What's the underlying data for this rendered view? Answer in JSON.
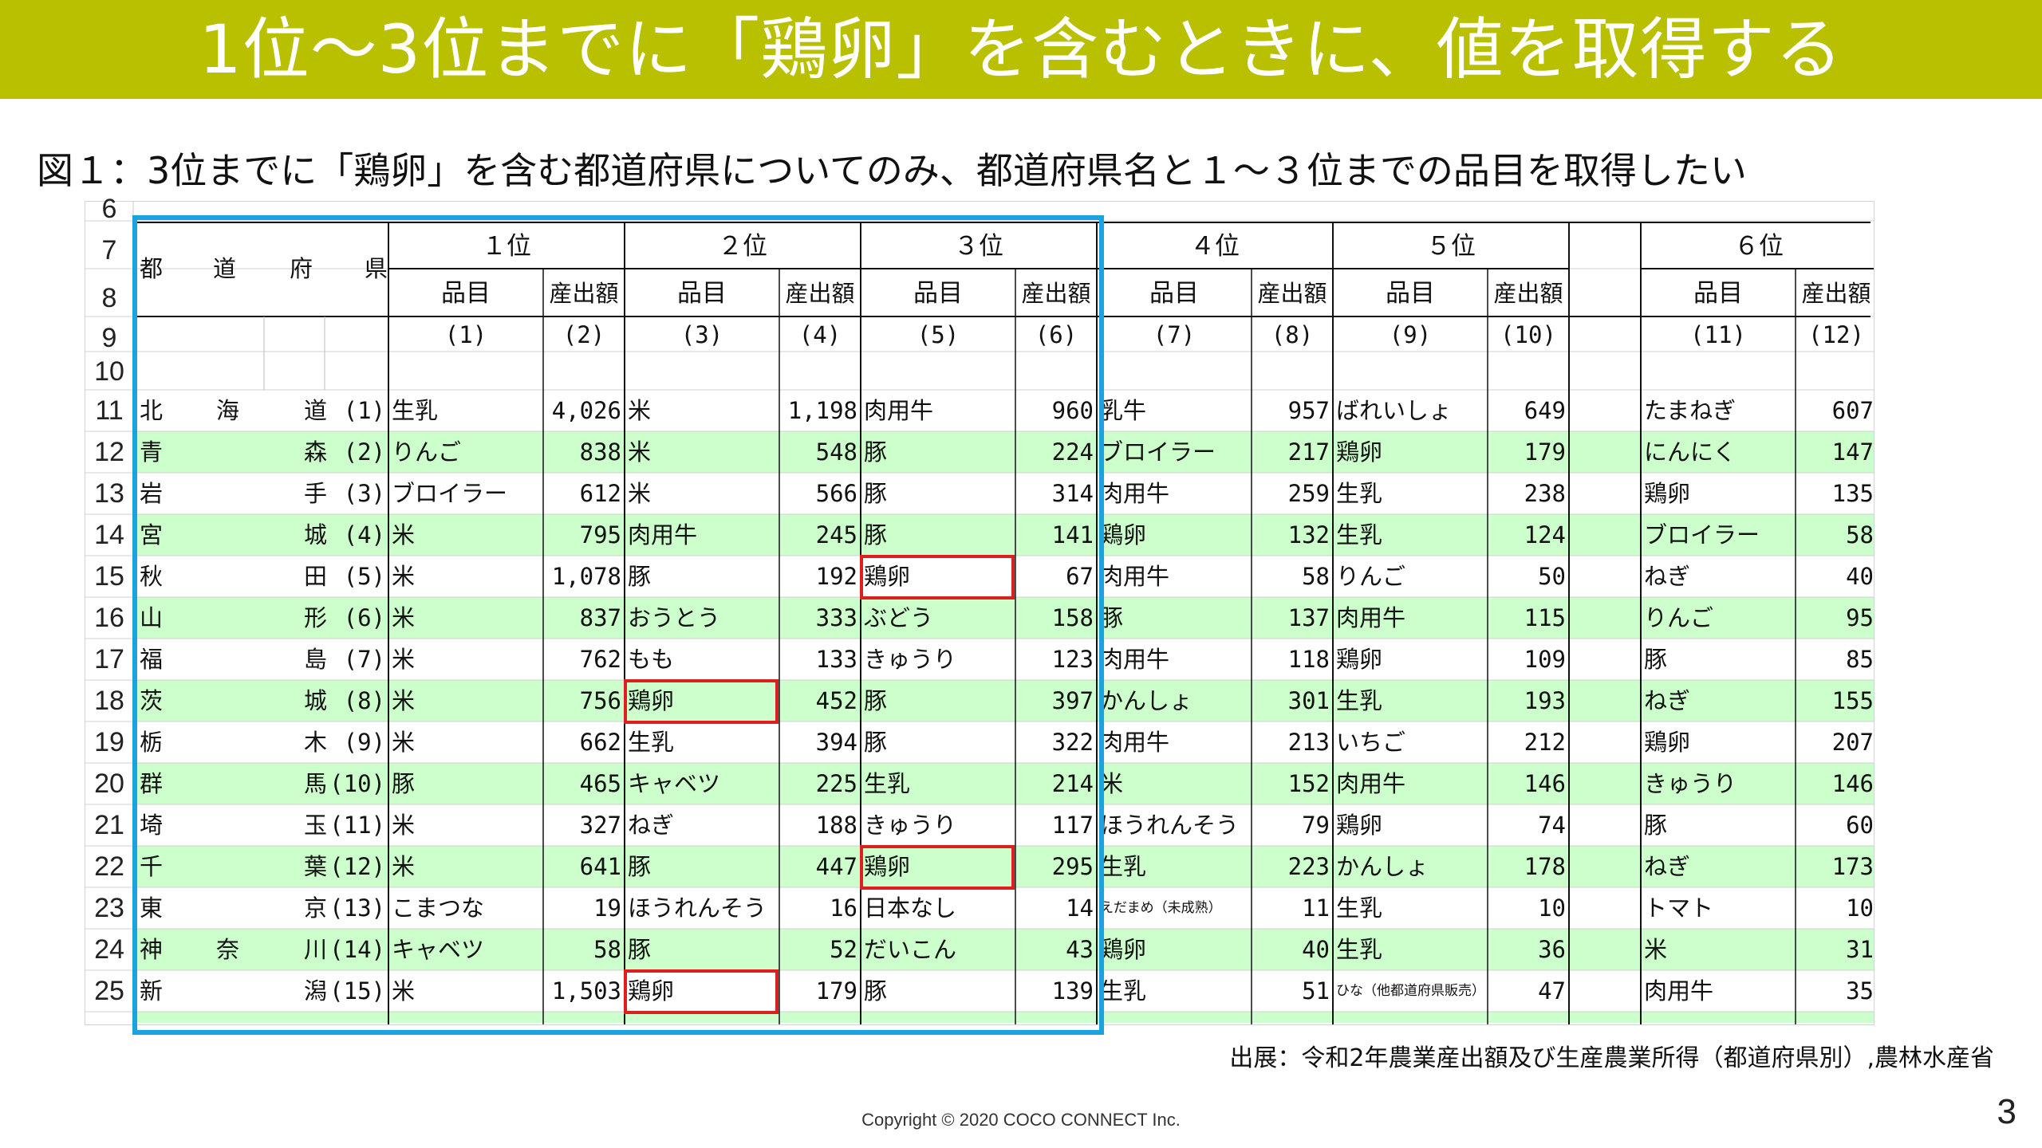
{
  "slide": {
    "title": "1位～3位までに「鶏卵」を含むときに、値を取得する",
    "subtitle": "図１：3位までに「鶏卵」を含む都道府県についてのみ、都道府県名と１～３位までの品目を取得したい",
    "source": "出展：令和2年農業産出額及び生産農業所得（都道府県別）,農林水産省",
    "copyright": "Copyright © 2020 COCO CONNECT Inc.",
    "page_number": "3"
  },
  "colors": {
    "title_bar": "#b9c000",
    "row_band": "#ccffcc",
    "highlight_frame": "#1aa3e0",
    "egg_box": "#dd1f1f"
  },
  "sheet": {
    "header": {
      "pref_label": [
        "都",
        "道",
        "府",
        "県"
      ],
      "rank_labels": [
        "１位",
        "２位",
        "３位",
        "４位",
        "５位",
        "６位"
      ],
      "item_label": "品目",
      "value_label": "産出額",
      "index_labels": [
        "(1)",
        "(2)",
        "(3)",
        "(4)",
        "(5)",
        "(6)",
        "(7)",
        "(8)",
        "(9)",
        "(10)",
        "(11)",
        "(12)"
      ]
    },
    "row_numbers_top": [
      "6",
      "7",
      "8",
      "9",
      "10"
    ],
    "rows": [
      {
        "n": "11",
        "pref": [
          "北",
          "海",
          "道"
        ],
        "code": "(1)",
        "c": [
          [
            "生乳",
            "4,026"
          ],
          [
            "米",
            "1,198"
          ],
          [
            "肉用牛",
            "960"
          ],
          [
            "乳牛",
            "957"
          ],
          [
            "ばれいしょ",
            "649"
          ],
          [
            "たまねぎ",
            "607"
          ]
        ]
      },
      {
        "n": "12",
        "pref": [
          "青",
          "森"
        ],
        "code": "(2)",
        "c": [
          [
            "りんご",
            "838"
          ],
          [
            "米",
            "548"
          ],
          [
            "豚",
            "224"
          ],
          [
            "ブロイラー",
            "217"
          ],
          [
            "鶏卵",
            "179"
          ],
          [
            "にんにく",
            "147"
          ]
        ]
      },
      {
        "n": "13",
        "pref": [
          "岩",
          "手"
        ],
        "code": "(3)",
        "c": [
          [
            "ブロイラー",
            "612"
          ],
          [
            "米",
            "566"
          ],
          [
            "豚",
            "314"
          ],
          [
            "肉用牛",
            "259"
          ],
          [
            "生乳",
            "238"
          ],
          [
            "鶏卵",
            "135"
          ]
        ]
      },
      {
        "n": "14",
        "pref": [
          "宮",
          "城"
        ],
        "code": "(4)",
        "c": [
          [
            "米",
            "795"
          ],
          [
            "肉用牛",
            "245"
          ],
          [
            "豚",
            "141"
          ],
          [
            "鶏卵",
            "132"
          ],
          [
            "生乳",
            "124"
          ],
          [
            "ブロイラー",
            "58"
          ]
        ]
      },
      {
        "n": "15",
        "pref": [
          "秋",
          "田"
        ],
        "code": "(5)",
        "c": [
          [
            "米",
            "1,078"
          ],
          [
            "豚",
            "192"
          ],
          [
            "鶏卵",
            "67"
          ],
          [
            "肉用牛",
            "58"
          ],
          [
            "りんご",
            "50"
          ],
          [
            "ねぎ",
            "40"
          ]
        ]
      },
      {
        "n": "16",
        "pref": [
          "山",
          "形"
        ],
        "code": "(6)",
        "c": [
          [
            "米",
            "837"
          ],
          [
            "おうとう",
            "333"
          ],
          [
            "ぶどう",
            "158"
          ],
          [
            "豚",
            "137"
          ],
          [
            "肉用牛",
            "115"
          ],
          [
            "りんご",
            "95"
          ]
        ]
      },
      {
        "n": "17",
        "pref": [
          "福",
          "島"
        ],
        "code": "(7)",
        "c": [
          [
            "米",
            "762"
          ],
          [
            "もも",
            "133"
          ],
          [
            "きゅうり",
            "123"
          ],
          [
            "肉用牛",
            "118"
          ],
          [
            "鶏卵",
            "109"
          ],
          [
            "豚",
            "85"
          ]
        ]
      },
      {
        "n": "18",
        "pref": [
          "茨",
          "城"
        ],
        "code": "(8)",
        "c": [
          [
            "米",
            "756"
          ],
          [
            "鶏卵",
            "452"
          ],
          [
            "豚",
            "397"
          ],
          [
            "かんしょ",
            "301"
          ],
          [
            "生乳",
            "193"
          ],
          [
            "ねぎ",
            "155"
          ]
        ]
      },
      {
        "n": "19",
        "pref": [
          "栃",
          "木"
        ],
        "code": "(9)",
        "c": [
          [
            "米",
            "662"
          ],
          [
            "生乳",
            "394"
          ],
          [
            "豚",
            "322"
          ],
          [
            "肉用牛",
            "213"
          ],
          [
            "いちご",
            "212"
          ],
          [
            "鶏卵",
            "207"
          ]
        ]
      },
      {
        "n": "20",
        "pref": [
          "群",
          "馬"
        ],
        "code": "(10)",
        "c": [
          [
            "豚",
            "465"
          ],
          [
            "キャベツ",
            "225"
          ],
          [
            "生乳",
            "214"
          ],
          [
            "米",
            "152"
          ],
          [
            "肉用牛",
            "146"
          ],
          [
            "きゅうり",
            "146"
          ]
        ]
      },
      {
        "n": "21",
        "pref": [
          "埼",
          "玉"
        ],
        "code": "(11)",
        "c": [
          [
            "米",
            "327"
          ],
          [
            "ねぎ",
            "188"
          ],
          [
            "きゅうり",
            "117"
          ],
          [
            "ほうれんそう",
            "79"
          ],
          [
            "鶏卵",
            "74"
          ],
          [
            "豚",
            "60"
          ]
        ]
      },
      {
        "n": "22",
        "pref": [
          "千",
          "葉"
        ],
        "code": "(12)",
        "c": [
          [
            "米",
            "641"
          ],
          [
            "豚",
            "447"
          ],
          [
            "鶏卵",
            "295"
          ],
          [
            "生乳",
            "223"
          ],
          [
            "かんしょ",
            "178"
          ],
          [
            "ねぎ",
            "173"
          ]
        ]
      },
      {
        "n": "23",
        "pref": [
          "東",
          "京"
        ],
        "code": "(13)",
        "c": [
          [
            "こまつな",
            "19"
          ],
          [
            "ほうれんそう",
            "16"
          ],
          [
            "日本なし",
            "14"
          ],
          [
            "えだまめ（未成熟）",
            "11"
          ],
          [
            "生乳",
            "10"
          ],
          [
            "トマト",
            "10"
          ]
        ]
      },
      {
        "n": "24",
        "pref": [
          "神",
          "奈",
          "川"
        ],
        "code": "(14)",
        "c": [
          [
            "キャベツ",
            "58"
          ],
          [
            "豚",
            "52"
          ],
          [
            "だいこん",
            "43"
          ],
          [
            "鶏卵",
            "40"
          ],
          [
            "生乳",
            "36"
          ],
          [
            "米",
            "31"
          ]
        ]
      },
      {
        "n": "25",
        "pref": [
          "新",
          "潟"
        ],
        "code": "(15)",
        "c": [
          [
            "米",
            "1,503"
          ],
          [
            "鶏卵",
            "179"
          ],
          [
            "豚",
            "139"
          ],
          [
            "生乳",
            "51"
          ],
          [
            "ひな（他都道府県販売）",
            "47"
          ],
          [
            "肉用牛",
            "35"
          ]
        ]
      }
    ]
  }
}
